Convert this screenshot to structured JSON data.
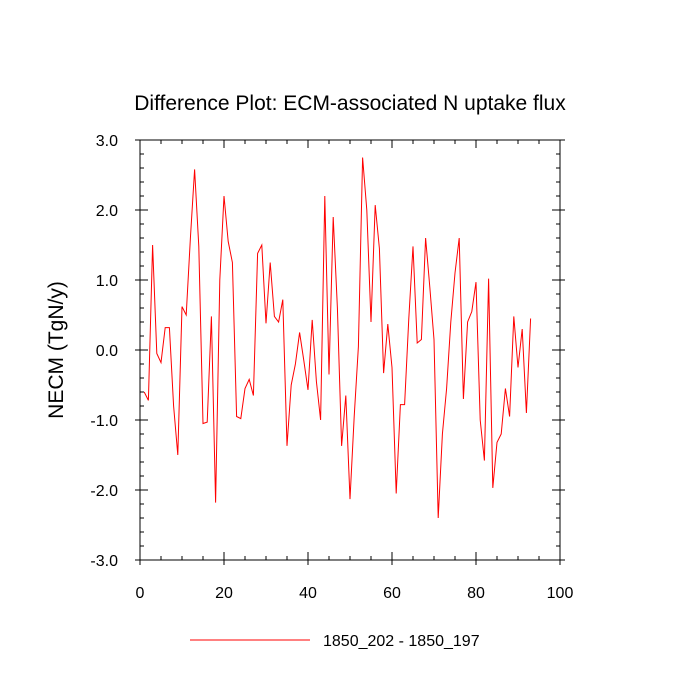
{
  "chart_data": {
    "type": "line",
    "title": "Difference Plot: ECM-associated N uptake flux",
    "xlabel": "",
    "ylabel": "NECM  (TgN/y)",
    "xlim": [
      0,
      100
    ],
    "ylim": [
      -3,
      3
    ],
    "xticks": [
      0,
      20,
      40,
      60,
      80,
      100
    ],
    "xtick_labels": [
      "0",
      "20",
      "40",
      "60",
      "80",
      "100"
    ],
    "yticks": [
      -3,
      -2,
      -1,
      0,
      1,
      2,
      3
    ],
    "ytick_labels": [
      "-3.0",
      "-2.0",
      "-1.0",
      "0.0",
      "1.0",
      "2.0",
      "3.0"
    ],
    "grid": false,
    "legend_position": "bottom-center",
    "series": [
      {
        "name": "1850_202 - 1850_197",
        "color": "#ff0000",
        "x": [
          1,
          2,
          3,
          4,
          5,
          6,
          7,
          8,
          9,
          10,
          11,
          12,
          13,
          14,
          15,
          16,
          17,
          18,
          19,
          20,
          21,
          22,
          23,
          24,
          25,
          26,
          27,
          28,
          29,
          30,
          31,
          32,
          33,
          34,
          35,
          36,
          37,
          38,
          39,
          40,
          41,
          42,
          43,
          44,
          45,
          46,
          47,
          48,
          49,
          50,
          51,
          52,
          53,
          54,
          55,
          56,
          57,
          58,
          59,
          60,
          61,
          62,
          63,
          64,
          65,
          66,
          67,
          68,
          69,
          70,
          71,
          72,
          73,
          74,
          75,
          76,
          77,
          78,
          79,
          80,
          81,
          82,
          83,
          84,
          85,
          86,
          87,
          88,
          89,
          90,
          91,
          92,
          93
        ],
        "y": [
          -0.6,
          -0.72,
          1.5,
          -0.05,
          -0.18,
          0.32,
          0.32,
          -0.8,
          -1.5,
          0.62,
          0.5,
          1.6,
          2.58,
          1.48,
          -1.05,
          -1.03,
          0.48,
          -2.18,
          1.0,
          2.2,
          1.55,
          1.25,
          -0.95,
          -0.98,
          -0.55,
          -0.42,
          -0.65,
          1.38,
          1.5,
          0.38,
          1.25,
          0.48,
          0.4,
          0.72,
          -1.37,
          -0.5,
          -0.2,
          0.25,
          -0.15,
          -0.57,
          0.43,
          -0.45,
          -1.0,
          2.2,
          -0.35,
          1.9,
          0.6,
          -1.37,
          -0.65,
          -2.13,
          -0.95,
          0.05,
          2.75,
          2.0,
          0.4,
          2.07,
          1.45,
          -0.33,
          0.37,
          -0.25,
          -2.05,
          -0.78,
          -0.78,
          0.45,
          1.48,
          0.1,
          0.15,
          1.6,
          0.9,
          0.15,
          -2.4,
          -1.2,
          -0.55,
          0.4,
          1.1,
          1.6,
          -0.7,
          0.4,
          0.55,
          0.97,
          -1.0,
          -1.58,
          1.02,
          -1.97,
          -1.32,
          -1.2,
          -0.55,
          -0.95,
          0.48,
          -0.25,
          0.3,
          -0.9,
          0.45
        ]
      }
    ]
  }
}
